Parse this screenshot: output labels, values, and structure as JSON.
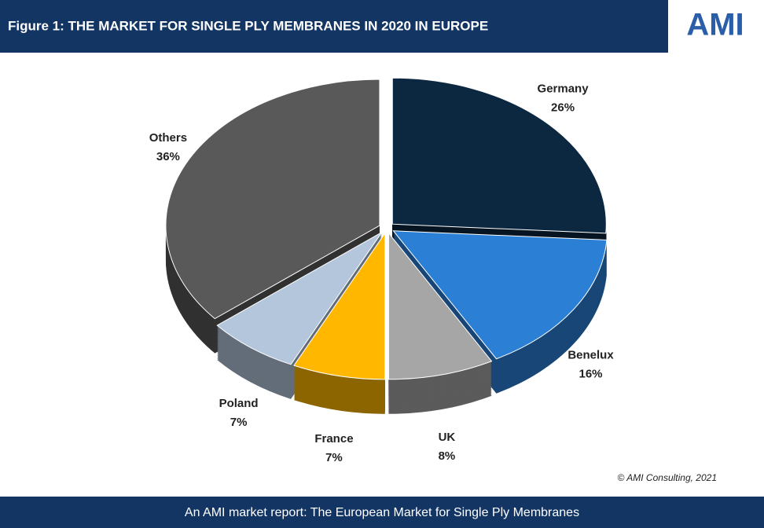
{
  "chart_data": {
    "type": "pie",
    "title": "Figure 1: THE MARKET FOR SINGLE PLY MEMBRANES IN 2020 IN EUROPE",
    "logo": "AMI",
    "categories": [
      "Germany",
      "Benelux",
      "UK",
      "France",
      "Poland",
      "Others"
    ],
    "values": [
      26,
      16,
      8,
      7,
      7,
      36
    ],
    "value_labels": [
      "26%",
      "16%",
      "8%",
      "7%",
      "7%",
      "36%"
    ],
    "colors": [
      "#0c2740",
      "#2b80d6",
      "#a6a6a6",
      "#ffb700",
      "#b4c6dc",
      "#595959"
    ],
    "note": "© AMI Consulting, 2021",
    "footer": "An AMI market report: The European Market for Single Ply Membranes"
  }
}
